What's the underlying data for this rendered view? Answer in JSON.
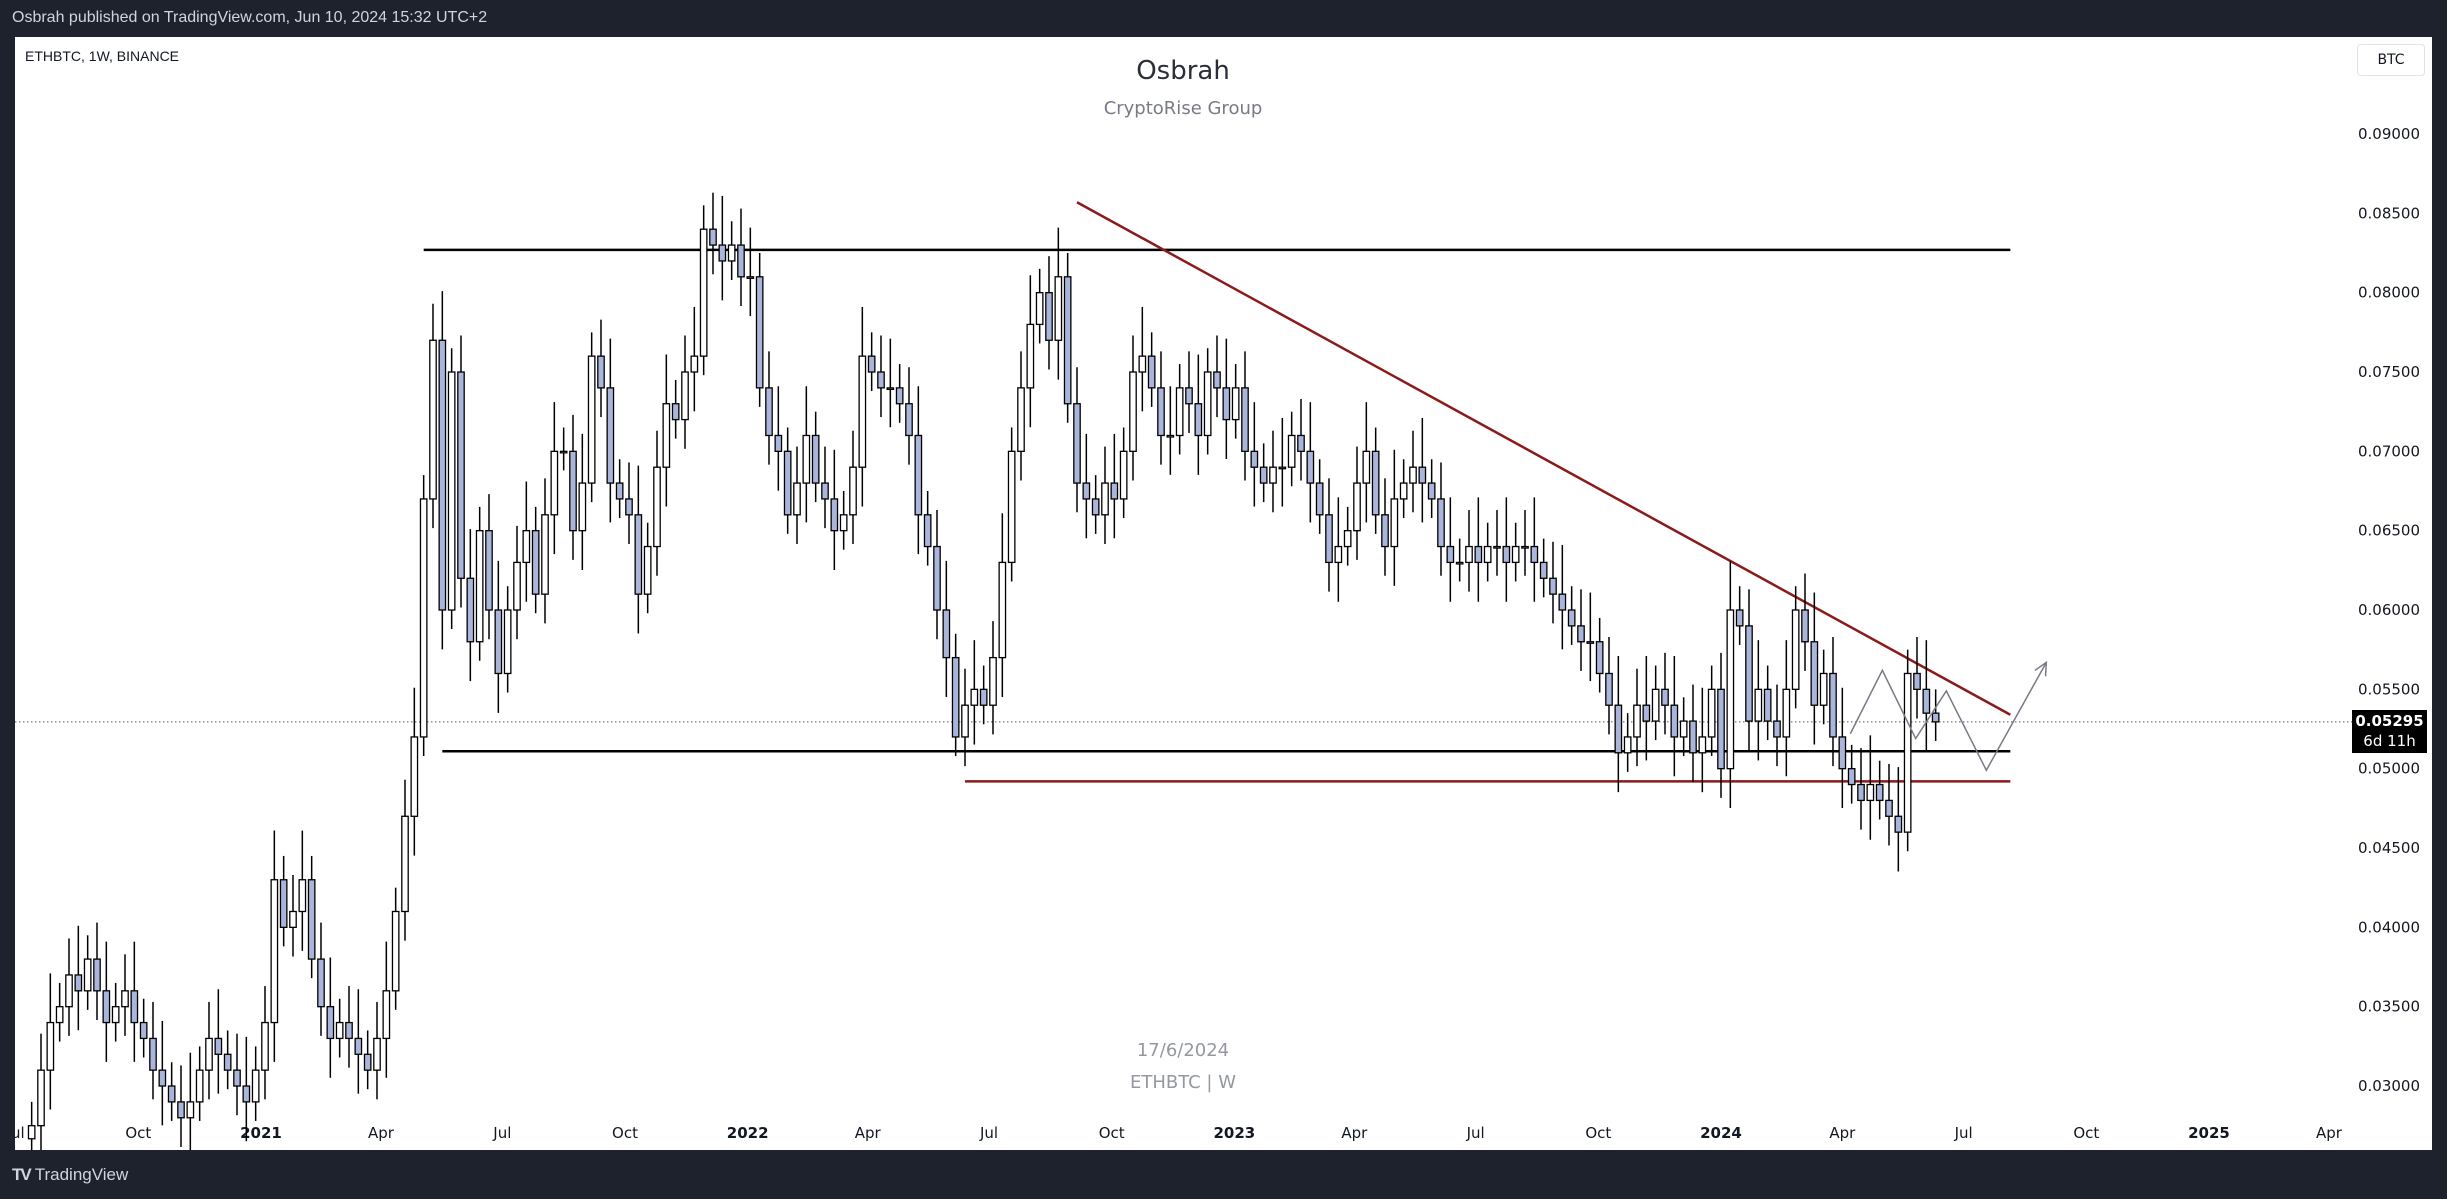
{
  "header": {
    "published": "Osbrah published on TradingView.com, Jun 10, 2024 15:32 UTC+2"
  },
  "symbol_line": "ETHBTC, 1W, BINANCE",
  "title": "Osbrah",
  "subtitle": "CryptoRise Group",
  "currency_button": "BTC",
  "watermark": {
    "date": "17/6/2024",
    "symbol": "ETHBTC | W"
  },
  "current_price": {
    "value": "0.05295",
    "countdown": "6d 11h"
  },
  "footer": {
    "logo_text": "TradingView"
  },
  "colors": {
    "up_fill": "#ffffff",
    "down_fill": "#a9b5d9",
    "candle_border": "#000000",
    "trendline": "#8b1a1a",
    "support": "#000000",
    "projection": "#787b86"
  },
  "chart_data": {
    "type": "candlestick",
    "interval": "1W",
    "ylim": [
      0.0285,
      0.0915
    ],
    "y_ticks": [
      "0.09000",
      "0.08500",
      "0.08000",
      "0.07500",
      "0.07000",
      "0.06500",
      "0.06000",
      "0.05500",
      "0.05000",
      "0.04500",
      "0.04000",
      "0.03500",
      "0.03000"
    ],
    "x_ticks": [
      {
        "label": "Jul",
        "date": "2020-07-01"
      },
      {
        "label": "Oct",
        "date": "2020-10-01"
      },
      {
        "label": "2021",
        "date": "2021-01-01",
        "bold": true
      },
      {
        "label": "Apr",
        "date": "2021-04-01"
      },
      {
        "label": "Jul",
        "date": "2021-07-01"
      },
      {
        "label": "Oct",
        "date": "2021-10-01"
      },
      {
        "label": "2022",
        "date": "2022-01-01",
        "bold": true
      },
      {
        "label": "Apr",
        "date": "2022-04-01"
      },
      {
        "label": "Jul",
        "date": "2022-07-01"
      },
      {
        "label": "Oct",
        "date": "2022-10-01"
      },
      {
        "label": "2023",
        "date": "2023-01-01",
        "bold": true
      },
      {
        "label": "Apr",
        "date": "2023-04-01"
      },
      {
        "label": "Jul",
        "date": "2023-07-01"
      },
      {
        "label": "Oct",
        "date": "2023-10-01"
      },
      {
        "label": "2024",
        "date": "2024-01-01",
        "bold": true
      },
      {
        "label": "Apr",
        "date": "2024-04-01"
      },
      {
        "label": "Jul",
        "date": "2024-07-01"
      },
      {
        "label": "Oct",
        "date": "2024-10-01"
      },
      {
        "label": "2025",
        "date": "2025-01-01",
        "bold": true
      },
      {
        "label": "Apr",
        "date": "2025-04-01"
      }
    ],
    "weekly_closes_by_month": [
      {
        "m": "2020-07",
        "first": "2020-07-13",
        "c": [
          0.0275,
          0.031,
          0.034
        ]
      },
      {
        "m": "2020-08",
        "first": "2020-08-03",
        "c": [
          0.035,
          0.037,
          0.036,
          0.038,
          0.036
        ]
      },
      {
        "m": "2020-09",
        "first": "2020-09-07",
        "c": [
          0.034,
          0.035,
          0.036,
          0.034
        ]
      },
      {
        "m": "2020-10",
        "first": "2020-10-05",
        "c": [
          0.033,
          0.031,
          0.03,
          0.029
        ]
      },
      {
        "m": "2020-11",
        "first": "2020-11-02",
        "c": [
          0.028,
          0.029,
          0.031,
          0.033,
          0.032
        ]
      },
      {
        "m": "2020-12",
        "first": "2020-12-07",
        "c": [
          0.031,
          0.03,
          0.029,
          0.031
        ]
      },
      {
        "m": "2021-01",
        "first": "2021-01-04",
        "c": [
          0.034,
          0.043,
          0.04,
          0.041
        ]
      },
      {
        "m": "2021-02",
        "first": "2021-02-01",
        "c": [
          0.043,
          0.038,
          0.035,
          0.033
        ]
      },
      {
        "m": "2021-03",
        "first": "2021-03-01",
        "c": [
          0.034,
          0.033,
          0.032,
          0.031,
          0.033
        ]
      },
      {
        "m": "2021-04",
        "first": "2021-04-05",
        "c": [
          0.036,
          0.041,
          0.047,
          0.052
        ]
      },
      {
        "m": "2021-05",
        "first": "2021-05-03",
        "c": [
          0.067,
          0.077,
          0.06,
          0.075,
          0.062
        ]
      },
      {
        "m": "2021-06",
        "first": "2021-06-07",
        "c": [
          0.058,
          0.065,
          0.06,
          0.056
        ]
      },
      {
        "m": "2021-07",
        "first": "2021-07-05",
        "c": [
          0.06,
          0.063,
          0.065,
          0.061
        ]
      },
      {
        "m": "2021-08",
        "first": "2021-08-02",
        "c": [
          0.066,
          0.07,
          0.07,
          0.065,
          0.068
        ]
      },
      {
        "m": "2021-09",
        "first": "2021-09-06",
        "c": [
          0.076,
          0.074,
          0.068,
          0.067
        ]
      },
      {
        "m": "2021-10",
        "first": "2021-10-04",
        "c": [
          0.066,
          0.061,
          0.064,
          0.069
        ]
      },
      {
        "m": "2021-11",
        "first": "2021-11-01",
        "c": [
          0.073,
          0.072,
          0.075,
          0.076,
          0.084
        ]
      },
      {
        "m": "2021-12",
        "first": "2021-12-06",
        "c": [
          0.083,
          0.082,
          0.083,
          0.081
        ]
      },
      {
        "m": "2022-01",
        "first": "2022-01-03",
        "c": [
          0.081,
          0.074,
          0.071,
          0.07,
          0.066
        ]
      },
      {
        "m": "2022-02",
        "first": "2022-02-07",
        "c": [
          0.068,
          0.071,
          0.068,
          0.067
        ]
      },
      {
        "m": "2022-03",
        "first": "2022-03-07",
        "c": [
          0.065,
          0.066,
          0.069,
          0.076
        ]
      },
      {
        "m": "2022-04",
        "first": "2022-04-04",
        "c": [
          0.075,
          0.074,
          0.074,
          0.073
        ]
      },
      {
        "m": "2022-05",
        "first": "2022-05-02",
        "c": [
          0.071,
          0.066,
          0.064,
          0.06,
          0.057
        ]
      },
      {
        "m": "2022-06",
        "first": "2022-06-06",
        "c": [
          0.052,
          0.054,
          0.055,
          0.054
        ]
      },
      {
        "m": "2022-07",
        "first": "2022-07-04",
        "c": [
          0.057,
          0.063,
          0.07,
          0.074
        ]
      },
      {
        "m": "2022-08",
        "first": "2022-08-01",
        "c": [
          0.078,
          0.08,
          0.077,
          0.081,
          0.073
        ]
      },
      {
        "m": "2022-09",
        "first": "2022-09-05",
        "c": [
          0.068,
          0.067,
          0.066,
          0.068
        ]
      },
      {
        "m": "2022-10",
        "first": "2022-10-03",
        "c": [
          0.067,
          0.07,
          0.075,
          0.076,
          0.074
        ]
      },
      {
        "m": "2022-11",
        "first": "2022-11-07",
        "c": [
          0.071,
          0.071,
          0.074,
          0.073
        ]
      },
      {
        "m": "2022-12",
        "first": "2022-12-05",
        "c": [
          0.071,
          0.075,
          0.074,
          0.072
        ]
      },
      {
        "m": "2023-01",
        "first": "2023-01-02",
        "c": [
          0.074,
          0.07,
          0.069,
          0.068,
          0.069
        ]
      },
      {
        "m": "2023-02",
        "first": "2023-02-06",
        "c": [
          0.069,
          0.071,
          0.07,
          0.068
        ]
      },
      {
        "m": "2023-03",
        "first": "2023-03-06",
        "c": [
          0.066,
          0.063,
          0.064,
          0.065
        ]
      },
      {
        "m": "2023-04",
        "first": "2023-04-03",
        "c": [
          0.068,
          0.07,
          0.066,
          0.064
        ]
      },
      {
        "m": "2023-05",
        "first": "2023-05-01",
        "c": [
          0.067,
          0.068,
          0.069,
          0.068,
          0.067
        ]
      },
      {
        "m": "2023-06",
        "first": "2023-06-05",
        "c": [
          0.064,
          0.063,
          0.063,
          0.064
        ]
      },
      {
        "m": "2023-07",
        "first": "2023-07-03",
        "c": [
          0.063,
          0.064,
          0.064,
          0.063,
          0.064
        ]
      },
      {
        "m": "2023-08",
        "first": "2023-08-07",
        "c": [
          0.064,
          0.063,
          0.062,
          0.061
        ]
      },
      {
        "m": "2023-09",
        "first": "2023-09-04",
        "c": [
          0.06,
          0.059,
          0.058,
          0.058
        ]
      },
      {
        "m": "2023-10",
        "first": "2023-10-02",
        "c": [
          0.056,
          0.054,
          0.051,
          0.052,
          0.054
        ]
      },
      {
        "m": "2023-11",
        "first": "2023-11-06",
        "c": [
          0.053,
          0.055,
          0.054,
          0.052
        ]
      },
      {
        "m": "2023-12",
        "first": "2023-12-04",
        "c": [
          0.053,
          0.051,
          0.052,
          0.055
        ]
      },
      {
        "m": "2024-01",
        "first": "2024-01-01",
        "c": [
          0.05,
          0.06,
          0.059,
          0.053,
          0.055
        ]
      },
      {
        "m": "2024-02",
        "first": "2024-02-05",
        "c": [
          0.053,
          0.052,
          0.055,
          0.06
        ]
      },
      {
        "m": "2024-03",
        "first": "2024-03-04",
        "c": [
          0.058,
          0.054,
          0.056,
          0.052
        ]
      },
      {
        "m": "2024-04",
        "first": "2024-04-01",
        "c": [
          0.05,
          0.049,
          0.048,
          0.049,
          0.048
        ]
      },
      {
        "m": "2024-05",
        "first": "2024-05-06",
        "c": [
          0.047,
          0.046,
          0.056,
          0.055
        ]
      },
      {
        "m": "2024-06",
        "first": "2024-06-03",
        "c": [
          0.0535,
          0.05295
        ]
      }
    ],
    "drawings": {
      "horizontal_lines": [
        {
          "price": 0.0827,
          "from": "2021-05-03",
          "to": "2024-08-05",
          "color": "support"
        },
        {
          "price": 0.0511,
          "from": "2021-05-17",
          "to": "2024-08-05",
          "color": "support"
        },
        {
          "price": 0.0492,
          "from": "2022-06-13",
          "to": "2024-08-05",
          "color": "trendline"
        }
      ],
      "trendline": {
        "from": {
          "date": "2022-09-05",
          "price": 0.0857
        },
        "to": {
          "date": "2024-08-05",
          "price": 0.0534
        }
      },
      "projection_path": [
        {
          "date": "2024-04-07",
          "price": 0.0522
        },
        {
          "date": "2024-05-01",
          "price": 0.0562
        },
        {
          "date": "2024-05-26",
          "price": 0.0519
        },
        {
          "date": "2024-06-18",
          "price": 0.0549
        },
        {
          "date": "2024-07-18",
          "price": 0.0499
        },
        {
          "date": "2024-09-01",
          "price": 0.0567
        }
      ]
    }
  }
}
